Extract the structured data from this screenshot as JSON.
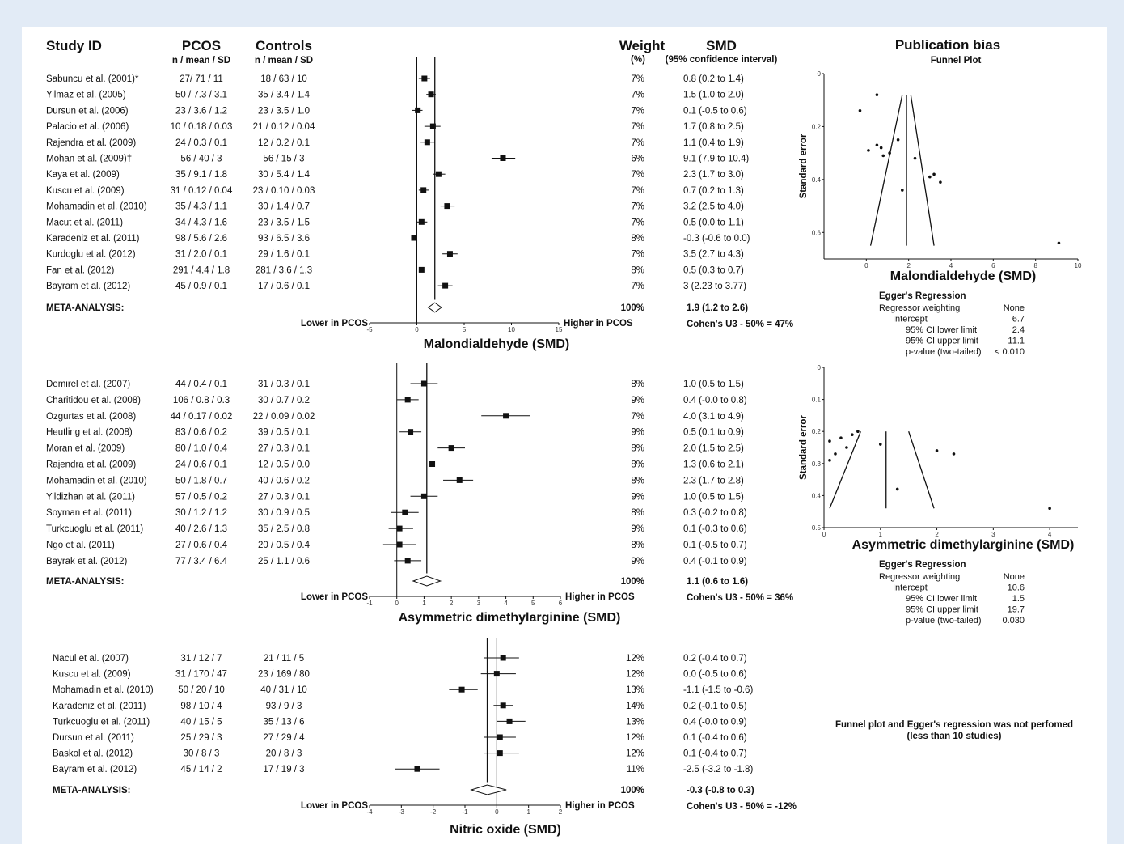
{
  "header": {
    "study_id": "Study ID",
    "pcos": "PCOS",
    "pcos_sub": "n / mean / SD",
    "controls": "Controls",
    "controls_sub": "n / mean / SD",
    "weight": "Weight",
    "weight_sub": "(%)",
    "smd": "SMD",
    "smd_sub": "(95% confidence interval)",
    "pub_bias": "Publication bias",
    "funnel_plot": "Funnel Plot"
  },
  "chart_data": [
    {
      "type": "forest",
      "xlabel": "Malondialdehyde (SMD)",
      "xlim": [
        -5,
        15
      ],
      "xticks": [
        -5,
        0,
        5,
        10,
        15
      ],
      "left_label": "Lower in PCOS",
      "right_label": "Higher in PCOS",
      "studies": [
        {
          "study": "Sabuncu et al. (2001)*",
          "pcos": "27/ 71 / 11",
          "controls": "18 / 63 / 10",
          "weight": "7%",
          "ci_text": "0.8 (0.2  to  1.4)",
          "smd": 0.8,
          "lo": 0.2,
          "hi": 1.4
        },
        {
          "study": "Yilmaz et al. (2005)",
          "pcos": "50 / 7.3 / 3.1",
          "controls": "35 / 3.4 / 1.4",
          "weight": "7%",
          "ci_text": "1.5 (1.0  to  2.0)",
          "smd": 1.5,
          "lo": 1.0,
          "hi": 2.0
        },
        {
          "study": "Dursun et al. (2006)",
          "pcos": "23 / 3.6 / 1.2",
          "controls": "23 / 3.5 / 1.0",
          "weight": "7%",
          "ci_text": "0.1 (-0.5  to  0.6)",
          "smd": 0.1,
          "lo": -0.5,
          "hi": 0.6
        },
        {
          "study": "Palacio et al. (2006)",
          "pcos": "10 / 0.18 / 0.03",
          "controls": "21 / 0.12 / 0.04",
          "weight": "7%",
          "ci_text": "1.7 (0.8  to  2.5)",
          "smd": 1.7,
          "lo": 0.8,
          "hi": 2.5
        },
        {
          "study": "Rajendra et al. (2009)",
          "pcos": "24 / 0.3 / 0.1",
          "controls": "12 / 0.2 / 0.1",
          "weight": "7%",
          "ci_text": "1.1 (0.4  to  1.9)",
          "smd": 1.1,
          "lo": 0.4,
          "hi": 1.9
        },
        {
          "study": "Mohan et al. (2009)†",
          "pcos": "56 / 40 / 3",
          "controls": "56 / 15 / 3",
          "weight": "6%",
          "ci_text": "9.1 (7.9  to  10.4)",
          "smd": 9.1,
          "lo": 7.9,
          "hi": 10.4
        },
        {
          "study": "Kaya et al. (2009)",
          "pcos": "35 / 9.1 / 1.8",
          "controls": "30 / 5.4 / 1.4",
          "weight": "7%",
          "ci_text": "2.3 (1.7  to  3.0)",
          "smd": 2.3,
          "lo": 1.7,
          "hi": 3.0
        },
        {
          "study": "Kuscu et al. (2009)",
          "pcos": "31 / 0.12 / 0.04",
          "controls": "23 / 0.10 / 0.03",
          "weight": "7%",
          "ci_text": "0.7 (0.2  to  1.3)",
          "smd": 0.7,
          "lo": 0.2,
          "hi": 1.3
        },
        {
          "study": "Mohamadin et al. (2010)",
          "pcos": "35 / 4.3 / 1.1",
          "controls": "30 / 1.4 / 0.7",
          "weight": "7%",
          "ci_text": "3.2 (2.5  to  4.0)",
          "smd": 3.2,
          "lo": 2.5,
          "hi": 4.0
        },
        {
          "study": "Macut et al. (2011)",
          "pcos": "34 / 4.3 / 1.6",
          "controls": "23 / 3.5 / 1.5",
          "weight": "7%",
          "ci_text": "0.5 (0.0  to  1.1)",
          "smd": 0.5,
          "lo": 0.0,
          "hi": 1.1
        },
        {
          "study": "Karadeniz et al. (2011)",
          "pcos": "98 / 5.6 / 2.6",
          "controls": "93 / 6.5 / 3.6",
          "weight": "8%",
          "ci_text": "-0.3 (-0.6  to  0.0)",
          "smd": -0.3,
          "lo": -0.6,
          "hi": 0.0
        },
        {
          "study": "Kurdoglu et al. (2012)",
          "pcos": "31 / 2.0 / 0.1",
          "controls": "29 / 1.6 / 0.1",
          "weight": "7%",
          "ci_text": "3.5 (2.7  to  4.3)",
          "smd": 3.5,
          "lo": 2.7,
          "hi": 4.3
        },
        {
          "study": "Fan et al. (2012)",
          "pcos": "291 / 4.4 / 1.8",
          "controls": "281 / 3.6 / 1.3",
          "weight": "8%",
          "ci_text": "0.5 (0.3  to  0.7)",
          "smd": 0.5,
          "lo": 0.3,
          "hi": 0.7
        },
        {
          "study": "Bayram et al. (2012)",
          "pcos": "45 / 0.9 / 0.1",
          "controls": "17 / 0.6 / 0.1",
          "weight": "7%",
          "ci_text": "3 (2.23  to  3.77)",
          "smd": 3.0,
          "lo": 2.23,
          "hi": 3.77
        }
      ],
      "meta": {
        "label": "META-ANALYSIS:",
        "weight": "100%",
        "ci_text": "1.9 (1.2 to 2.6)",
        "smd": 1.9,
        "lo": 1.2,
        "hi": 2.6,
        "cohens": "Cohen's U3 - 50% = 47%"
      }
    },
    {
      "type": "forest",
      "xlabel": "Asymmetric dimethylarginine (SMD)",
      "xlim": [
        -1,
        6
      ],
      "xticks": [
        -1,
        0,
        1,
        2,
        3,
        4,
        5,
        6
      ],
      "left_label": "Lower in PCOS",
      "right_label": "Higher in PCOS",
      "studies": [
        {
          "study": "Demirel et al. (2007)",
          "pcos": "44 / 0.4 / 0.1",
          "controls": "31 / 0.3 / 0.1",
          "weight": "8%",
          "ci_text": "1.0 (0.5  to  1.5)",
          "smd": 1.0,
          "lo": 0.5,
          "hi": 1.5
        },
        {
          "study": "Charitidou et al. (2008)",
          "pcos": "106 / 0.8 / 0.3",
          "controls": "30 / 0.7 / 0.2",
          "weight": "9%",
          "ci_text": "0.4 (-0.0  to  0.8)",
          "smd": 0.4,
          "lo": 0.0,
          "hi": 0.8
        },
        {
          "study": "Ozgurtas et al. (2008)",
          "pcos": "44 / 0.17 / 0.02",
          "controls": "22 / 0.09 / 0.02",
          "weight": "7%",
          "ci_text": "4.0 (3.1  to  4.9)",
          "smd": 4.0,
          "lo": 3.1,
          "hi": 4.9
        },
        {
          "study": "Heutling et al. (2008)",
          "pcos": "83 / 0.6 / 0.2",
          "controls": "39 / 0.5 / 0.1",
          "weight": "9%",
          "ci_text": "0.5 (0.1  to  0.9)",
          "smd": 0.5,
          "lo": 0.1,
          "hi": 0.9
        },
        {
          "study": "Moran et al. (2009)",
          "pcos": "80 / 1.0 / 0.4",
          "controls": "27 / 0.3 / 0.1",
          "weight": "8%",
          "ci_text": "2.0 (1.5  to  2.5)",
          "smd": 2.0,
          "lo": 1.5,
          "hi": 2.5
        },
        {
          "study": "Rajendra et al. (2009)",
          "pcos": "24 / 0.6 / 0.1",
          "controls": "12 / 0.5 / 0.0",
          "weight": "8%",
          "ci_text": "1.3 (0.6  to  2.1)",
          "smd": 1.3,
          "lo": 0.6,
          "hi": 2.1
        },
        {
          "study": "Mohamadin et al. (2010)",
          "pcos": "50 / 1.8 / 0.7",
          "controls": "40 / 0.6 / 0.2",
          "weight": "8%",
          "ci_text": "2.3 (1.7  to  2.8)",
          "smd": 2.3,
          "lo": 1.7,
          "hi": 2.8
        },
        {
          "study": "Yildizhan et al. (2011)",
          "pcos": "57 / 0.5 / 0.2",
          "controls": "27 / 0.3 / 0.1",
          "weight": "9%",
          "ci_text": "1.0 (0.5  to  1.5)",
          "smd": 1.0,
          "lo": 0.5,
          "hi": 1.5
        },
        {
          "study": "Soyman et al. (2011)",
          "pcos": "30 / 1.2 / 1.2",
          "controls": "30 / 0.9 / 0.5",
          "weight": "8%",
          "ci_text": "0.3 (-0.2  to  0.8)",
          "smd": 0.3,
          "lo": -0.2,
          "hi": 0.8
        },
        {
          "study": "Turkcuoglu et al. (2011)",
          "pcos": "40 / 2.6 / 1.3",
          "controls": "35 / 2.5 / 0.8",
          "weight": "9%",
          "ci_text": "0.1 (-0.3  to  0.6)",
          "smd": 0.1,
          "lo": -0.3,
          "hi": 0.6
        },
        {
          "study": "Ngo et al. (2011)",
          "pcos": "27 / 0.6 / 0.4",
          "controls": "20 / 0.5 / 0.4",
          "weight": "8%",
          "ci_text": "0.1 (-0.5  to  0.7)",
          "smd": 0.1,
          "lo": -0.5,
          "hi": 0.7
        },
        {
          "study": "Bayrak et al. (2012)",
          "pcos": "77 / 3.4 / 6.4",
          "controls": "25 / 1.1 / 0.6",
          "weight": "9%",
          "ci_text": "0.4 (-0.1  to  0.9)",
          "smd": 0.4,
          "lo": -0.1,
          "hi": 0.9
        }
      ],
      "meta": {
        "label": "META-ANALYSIS:",
        "weight": "100%",
        "ci_text": "1.1 (0.6 to 1.6)",
        "smd": 1.1,
        "lo": 0.6,
        "hi": 1.6,
        "cohens": "Cohen's U3 - 50% = 36%"
      }
    },
    {
      "type": "forest",
      "xlabel": "Nitric oxide (SMD)",
      "xlim": [
        -4,
        2
      ],
      "xticks": [
        -4,
        -3,
        -2,
        -1,
        0,
        1,
        2
      ],
      "left_label": "Lower in PCOS",
      "right_label": "Higher in PCOS",
      "studies": [
        {
          "study": "Nacul et al. (2007)",
          "pcos": "31 / 12 / 7",
          "controls": "21 / 11 / 5",
          "weight": "12%",
          "ci_text": "0.2 (-0.4  to  0.7)",
          "smd": 0.2,
          "lo": -0.4,
          "hi": 0.7
        },
        {
          "study": "Kuscu et al. (2009)",
          "pcos": "31 / 170 / 47",
          "controls": "23 / 169 / 80",
          "weight": "12%",
          "ci_text": "0.0 (-0.5  to  0.6)",
          "smd": 0.0,
          "lo": -0.5,
          "hi": 0.6
        },
        {
          "study": "Mohamadin et al. (2010)",
          "pcos": "50 / 20 / 10",
          "controls": "40 / 31 / 10",
          "weight": "13%",
          "ci_text": "-1.1 (-1.5  to  -0.6)",
          "smd": -1.1,
          "lo": -1.5,
          "hi": -0.6
        },
        {
          "study": "Karadeniz et al. (2011)",
          "pcos": "98 / 10 / 4",
          "controls": "93 / 9 / 3",
          "weight": "14%",
          "ci_text": "0.2 (-0.1  to  0.5)",
          "smd": 0.2,
          "lo": -0.1,
          "hi": 0.5
        },
        {
          "study": "Turkcuoglu et al. (2011)",
          "pcos": "40 / 15 / 5",
          "controls": "35 / 13 / 6",
          "weight": "13%",
          "ci_text": "0.4 (-0.0  to  0.9)",
          "smd": 0.4,
          "lo": 0.0,
          "hi": 0.9
        },
        {
          "study": "Dursun et al. (2011)",
          "pcos": "25 / 29 / 3",
          "controls": "27 / 29 / 4",
          "weight": "12%",
          "ci_text": "0.1 (-0.4  to  0.6)",
          "smd": 0.1,
          "lo": -0.4,
          "hi": 0.6
        },
        {
          "study": "Baskol et al. (2012)",
          "pcos": "30 / 8 / 3",
          "controls": "20 / 8 / 3",
          "weight": "12%",
          "ci_text": "0.1 (-0.4  to  0.7)",
          "smd": 0.1,
          "lo": -0.4,
          "hi": 0.7
        },
        {
          "study": "Bayram et al. (2012)",
          "pcos": "45 / 14 / 2",
          "controls": "17 / 19 / 3",
          "weight": "11%",
          "ci_text": "-2.5 (-3.2  to  -1.8)",
          "smd": -2.5,
          "lo": -3.2,
          "hi": -1.8
        }
      ],
      "meta": {
        "label": "META-ANALYSIS:",
        "weight": "100%",
        "ci_text": "-0.3 (-0.8 to 0.3)",
        "smd": -0.3,
        "lo": -0.8,
        "hi": 0.3,
        "cohens": "Cohen's U3 - 50% = -12%"
      }
    },
    {
      "type": "scatter",
      "xlabel": "Malondialdehyde (SMD)",
      "ylabel": "Standard error",
      "xlim": [
        -2,
        10
      ],
      "ylim": [
        0,
        0.7
      ],
      "xticks": [
        0,
        2,
        4,
        6,
        8,
        10
      ],
      "yticks": [
        0,
        0.2,
        0.4,
        0.6
      ],
      "ytick_labels": [
        "0",
        "0.2",
        "0.4",
        "0.6"
      ],
      "center": 1.9,
      "funnel": {
        "top_left": 1.7,
        "top_right": 2.1,
        "top_se": 0.08,
        "bottom_left": 0.2,
        "bottom_right": 3.2,
        "bottom_se": 0.65
      },
      "points": [
        [
          -0.3,
          0.14
        ],
        [
          0.1,
          0.29
        ],
        [
          0.5,
          0.08
        ],
        [
          0.5,
          0.27
        ],
        [
          0.7,
          0.28
        ],
        [
          0.8,
          0.31
        ],
        [
          1.5,
          0.25
        ],
        [
          1.1,
          0.3
        ],
        [
          1.7,
          0.44
        ],
        [
          2.3,
          0.32
        ],
        [
          3.2,
          0.38
        ],
        [
          3.0,
          0.39
        ],
        [
          3.5,
          0.41
        ],
        [
          9.1,
          0.64
        ]
      ],
      "egger": {
        "title": "Egger's Regression",
        "rows": [
          {
            "label": "Regressor weighting",
            "value": "None"
          },
          {
            "label": "Intercept",
            "value": "6.7"
          },
          {
            "label": "95% CI lower limit",
            "value": "2.4"
          },
          {
            "label": "95% CI upper limit",
            "value": "11.1"
          },
          {
            "label": "p-value (two-tailed)",
            "value": "< 0.010"
          }
        ]
      }
    },
    {
      "type": "scatter",
      "xlabel": "Asymmetric dimethylarginine (SMD)",
      "ylabel": "Standard error",
      "xlim": [
        0,
        4.5
      ],
      "ylim": [
        0,
        0.5
      ],
      "xticks": [
        0,
        1,
        2,
        3,
        4
      ],
      "yticks": [
        0,
        0.1,
        0.2,
        0.3,
        0.4,
        0.5
      ],
      "ytick_labels": [
        "0",
        "0.1",
        "0.2",
        "0.3",
        "0.4",
        "0.5"
      ],
      "center": 1.1,
      "funnel": {
        "top_left": 0.65,
        "top_right": 1.5,
        "top_se": 0.2,
        "bottom_left": 0.1,
        "bottom_right": 1.95,
        "bottom_se": 0.44
      },
      "points": [
        [
          0.1,
          0.23
        ],
        [
          0.3,
          0.22
        ],
        [
          0.4,
          0.25
        ],
        [
          0.5,
          0.21
        ],
        [
          0.6,
          0.2
        ],
        [
          0.1,
          0.29
        ],
        [
          0.2,
          0.27
        ],
        [
          1.0,
          0.24
        ],
        [
          1.3,
          0.38
        ],
        [
          2.0,
          0.26
        ],
        [
          2.3,
          0.27
        ],
        [
          4.0,
          0.44
        ]
      ],
      "egger": {
        "title": "Egger's Regression",
        "rows": [
          {
            "label": "Regressor weighting",
            "value": "None"
          },
          {
            "label": "Intercept",
            "value": "10.6"
          },
          {
            "label": "95% CI lower limit",
            "value": "1.5"
          },
          {
            "label": "95% CI upper limit",
            "value": "19.7"
          },
          {
            "label": "p-value (two-tailed)",
            "value": "0.030"
          }
        ]
      }
    }
  ],
  "note": {
    "line1": "Funnel plot and Egger's regression was not perfomed",
    "line2": "(less than 10 studies)"
  }
}
